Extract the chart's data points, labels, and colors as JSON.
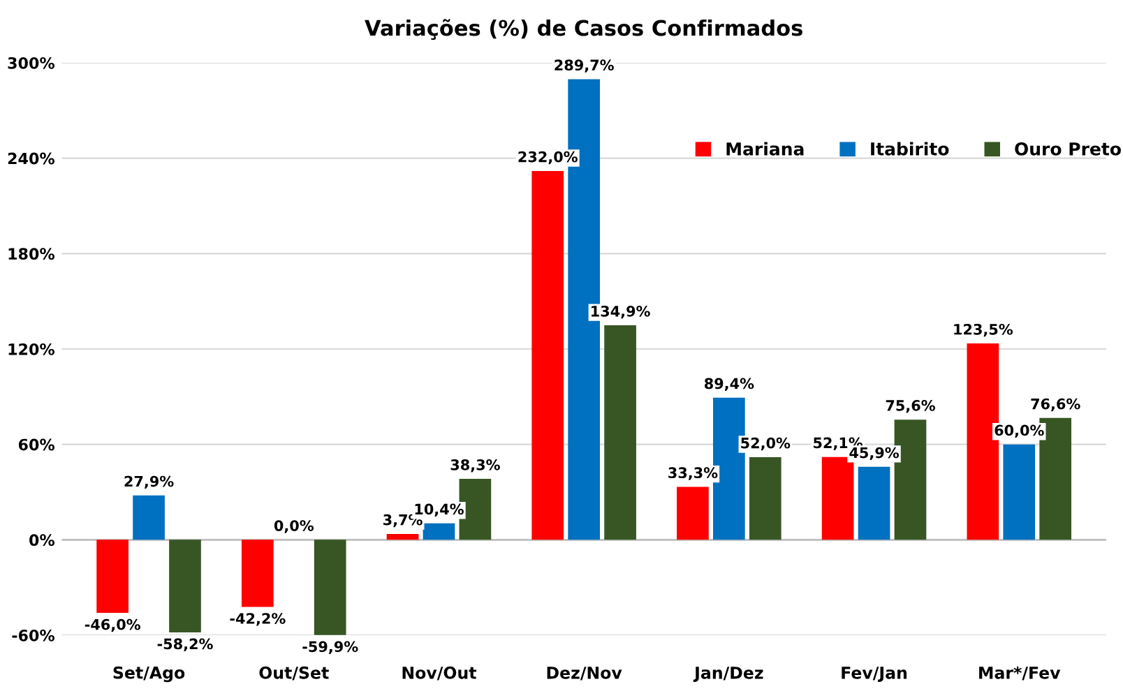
{
  "chart_data": {
    "type": "bar",
    "title": "Variações (%) de Casos Confirmados",
    "categories": [
      "Set/Ago",
      "Out/Set",
      "Nov/Out",
      "Dez/Nov",
      "Jan/Dez",
      "Fev/Jan",
      "Mar*/Fev"
    ],
    "series": [
      {
        "name": "Mariana",
        "color": "#ff0000",
        "values": [
          -46.0,
          -42.2,
          3.7,
          232.0,
          33.3,
          52.1,
          123.5
        ],
        "value_labels": [
          "-46,0%",
          "-42,2%",
          "3,7%",
          "232,0%",
          "33,3%",
          "52,1%",
          "123,5%"
        ]
      },
      {
        "name": "Itabirito",
        "color": "#0070c0",
        "values": [
          27.9,
          0.0,
          10.4,
          289.7,
          89.4,
          45.9,
          60.0
        ],
        "value_labels": [
          "27,9%",
          "0,0%",
          "10,4%",
          "289,7%",
          "89,4%",
          "45,9%",
          "60,0%"
        ]
      },
      {
        "name": "Ouro Preto",
        "color": "#375623",
        "values": [
          -58.2,
          -59.9,
          38.3,
          134.9,
          52.0,
          75.6,
          76.6
        ],
        "value_labels": [
          "-58,2%",
          "-59,9%",
          "38,3%",
          "134,9%",
          "52,0%",
          "75,6%",
          "76,6%"
        ]
      }
    ],
    "ylim": [
      -60,
      300
    ],
    "yticks": [
      {
        "value": -60,
        "label": "-60%"
      },
      {
        "value": 0,
        "label": "0%"
      },
      {
        "value": 60,
        "label": "60%"
      },
      {
        "value": 120,
        "label": "120%"
      },
      {
        "value": 180,
        "label": "180%"
      },
      {
        "value": 240,
        "label": "240%"
      },
      {
        "value": 300,
        "label": "300%"
      }
    ],
    "grid": "y",
    "legend": "top right"
  }
}
